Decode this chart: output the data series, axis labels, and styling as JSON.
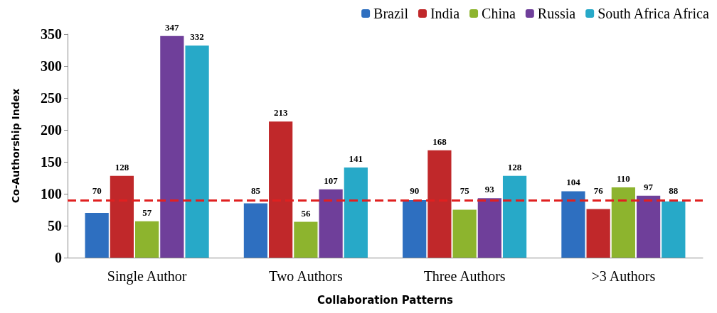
{
  "chart_data": {
    "type": "bar",
    "xlabel": "Collaboration Patterns",
    "ylabel": "Co-Authorship Index",
    "categories": [
      "Single Author",
      "Two Authors",
      "Three Authors",
      ">3 Authors"
    ],
    "series": [
      {
        "name": "Brazil",
        "color": "#2e6fc0",
        "values": [
          70,
          85,
          90,
          104
        ]
      },
      {
        "name": "India",
        "color": "#c0282a",
        "values": [
          128,
          213,
          168,
          76
        ]
      },
      {
        "name": "China",
        "color": "#8db42e",
        "values": [
          57,
          56,
          75,
          110
        ]
      },
      {
        "name": "Russia",
        "color": "#6f3f9a",
        "values": [
          347,
          107,
          93,
          97
        ]
      },
      {
        "name": "South Africa Africa",
        "color": "#27a9c8",
        "values": [
          332,
          141,
          128,
          88
        ]
      }
    ],
    "ylim": [
      0,
      350
    ],
    "yticks": [
      0,
      50,
      100,
      150,
      200,
      250,
      300,
      350
    ],
    "ref_lines": [
      {
        "axis": "y",
        "value": 90,
        "color": "#e02020",
        "line_style": "dashed"
      }
    ],
    "data_labels": true,
    "grid": false,
    "legend": "top right"
  }
}
